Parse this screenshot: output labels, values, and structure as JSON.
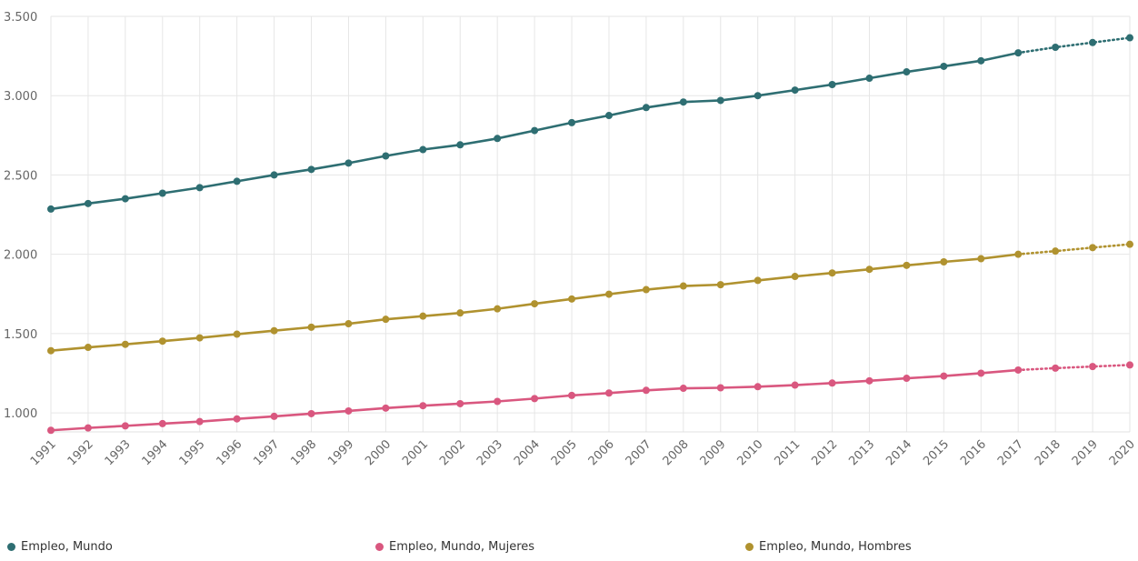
{
  "chart_data": {
    "type": "line",
    "title": "",
    "xlabel": "",
    "ylabel": "",
    "x": [
      "1991",
      "1992",
      "1993",
      "1994",
      "1995",
      "1996",
      "1997",
      "1998",
      "1999",
      "2000",
      "2001",
      "2002",
      "2003",
      "2004",
      "2005",
      "2006",
      "2007",
      "2008",
      "2009",
      "2010",
      "2011",
      "2012",
      "2013",
      "2014",
      "2015",
      "2016",
      "2017",
      "2018",
      "2019",
      "2020"
    ],
    "ylim": [
      880,
      3500
    ],
    "yticks": [
      1000,
      1500,
      2000,
      2500,
      3000,
      3500
    ],
    "ytick_labels": [
      "1.000",
      "1.500",
      "2.000",
      "2.500",
      "3.000",
      "3.500"
    ],
    "grid": true,
    "projection_start": "2017",
    "legend_position": "bottom",
    "series": [
      {
        "name": "Empleo, Mundo",
        "color": "#2e6e72",
        "values": [
          2285,
          2320,
          2350,
          2385,
          2420,
          2460,
          2500,
          2535,
          2575,
          2620,
          2660,
          2690,
          2730,
          2780,
          2830,
          2875,
          2925,
          2960,
          2970,
          3000,
          3035,
          3070,
          3110,
          3150,
          3185,
          3220,
          3270,
          3305,
          3335,
          3365
        ]
      },
      {
        "name": "Empleo, Mundo, Mujeres",
        "color": "#d9577f",
        "values": [
          890,
          905,
          918,
          932,
          945,
          962,
          978,
          995,
          1012,
          1030,
          1045,
          1058,
          1072,
          1090,
          1110,
          1125,
          1142,
          1155,
          1158,
          1165,
          1175,
          1188,
          1202,
          1218,
          1232,
          1250,
          1270,
          1282,
          1292,
          1302
        ]
      },
      {
        "name": "Empleo, Mundo, Hombres",
        "color": "#b0922f",
        "values": [
          1392,
          1413,
          1432,
          1452,
          1473,
          1496,
          1518,
          1540,
          1562,
          1590,
          1610,
          1630,
          1656,
          1688,
          1718,
          1748,
          1777,
          1800,
          1808,
          1835,
          1860,
          1882,
          1905,
          1930,
          1952,
          1972,
          2000,
          2020,
          2042,
          2063
        ]
      }
    ]
  }
}
